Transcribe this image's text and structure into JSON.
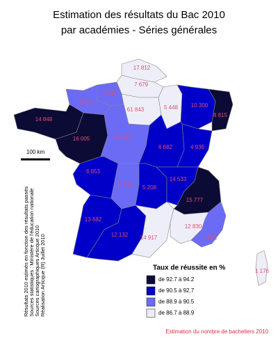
{
  "title": [
    "Estimation des résultats du Bac 2010",
    "par académies - Séries générales"
  ],
  "scale_label": "100 km",
  "legend": {
    "title": "Taux de réussite en %",
    "classes": [
      {
        "label": "de 92.7 à 94.2",
        "color": "#0b0b36"
      },
      {
        "label": "de 90.5 à 92.7",
        "color": "#0000c8"
      },
      {
        "label": "de 88.9 à 90.5",
        "color": "#6b6bf5"
      },
      {
        "label": "de 86.7 à 88.9",
        "color": "#eeeef8"
      }
    ]
  },
  "regions": [
    {
      "label": "17 812",
      "class": 3
    },
    {
      "label": "7 679",
      "class": 3
    },
    {
      "label": "5 312",
      "class": 2
    },
    {
      "label": "6 531",
      "class": 2
    },
    {
      "label": "61 843",
      "class": 3
    },
    {
      "label": "5 448",
      "class": 3
    },
    {
      "label": "10 300",
      "class": 1
    },
    {
      "label": "8 815",
      "class": 0
    },
    {
      "label": "14 848",
      "class": 0
    },
    {
      "label": "16 005",
      "class": 0
    },
    {
      "label": "10 596",
      "class": 2
    },
    {
      "label": "6 682",
      "class": 1
    },
    {
      "label": "4 936",
      "class": 1
    },
    {
      "label": "6 653",
      "class": 1
    },
    {
      "label": "2 768",
      "class": 2
    },
    {
      "label": "5 208",
      "class": 1
    },
    {
      "label": "14 533",
      "class": 1
    },
    {
      "label": "15 777",
      "class": 0
    },
    {
      "label": "13 682",
      "class": 1
    },
    {
      "label": "12 132",
      "class": 1
    },
    {
      "label": "14 917",
      "class": 3
    },
    {
      "label": "12 830",
      "class": 3
    },
    {
      "label": "8 553",
      "class": 2
    },
    {
      "label": "1 176",
      "class": 3
    }
  ],
  "sources": [
    "Résultats 2010 estimés en fonction des résultats passés",
    "Sources statistiques : Ministère de l'éducation nationale",
    "Sources cartographiques Articque 2010",
    "Réalisation Articque (R) Juillet 2010"
  ],
  "note": "Estimation du nombre de bacheliers 2010"
}
